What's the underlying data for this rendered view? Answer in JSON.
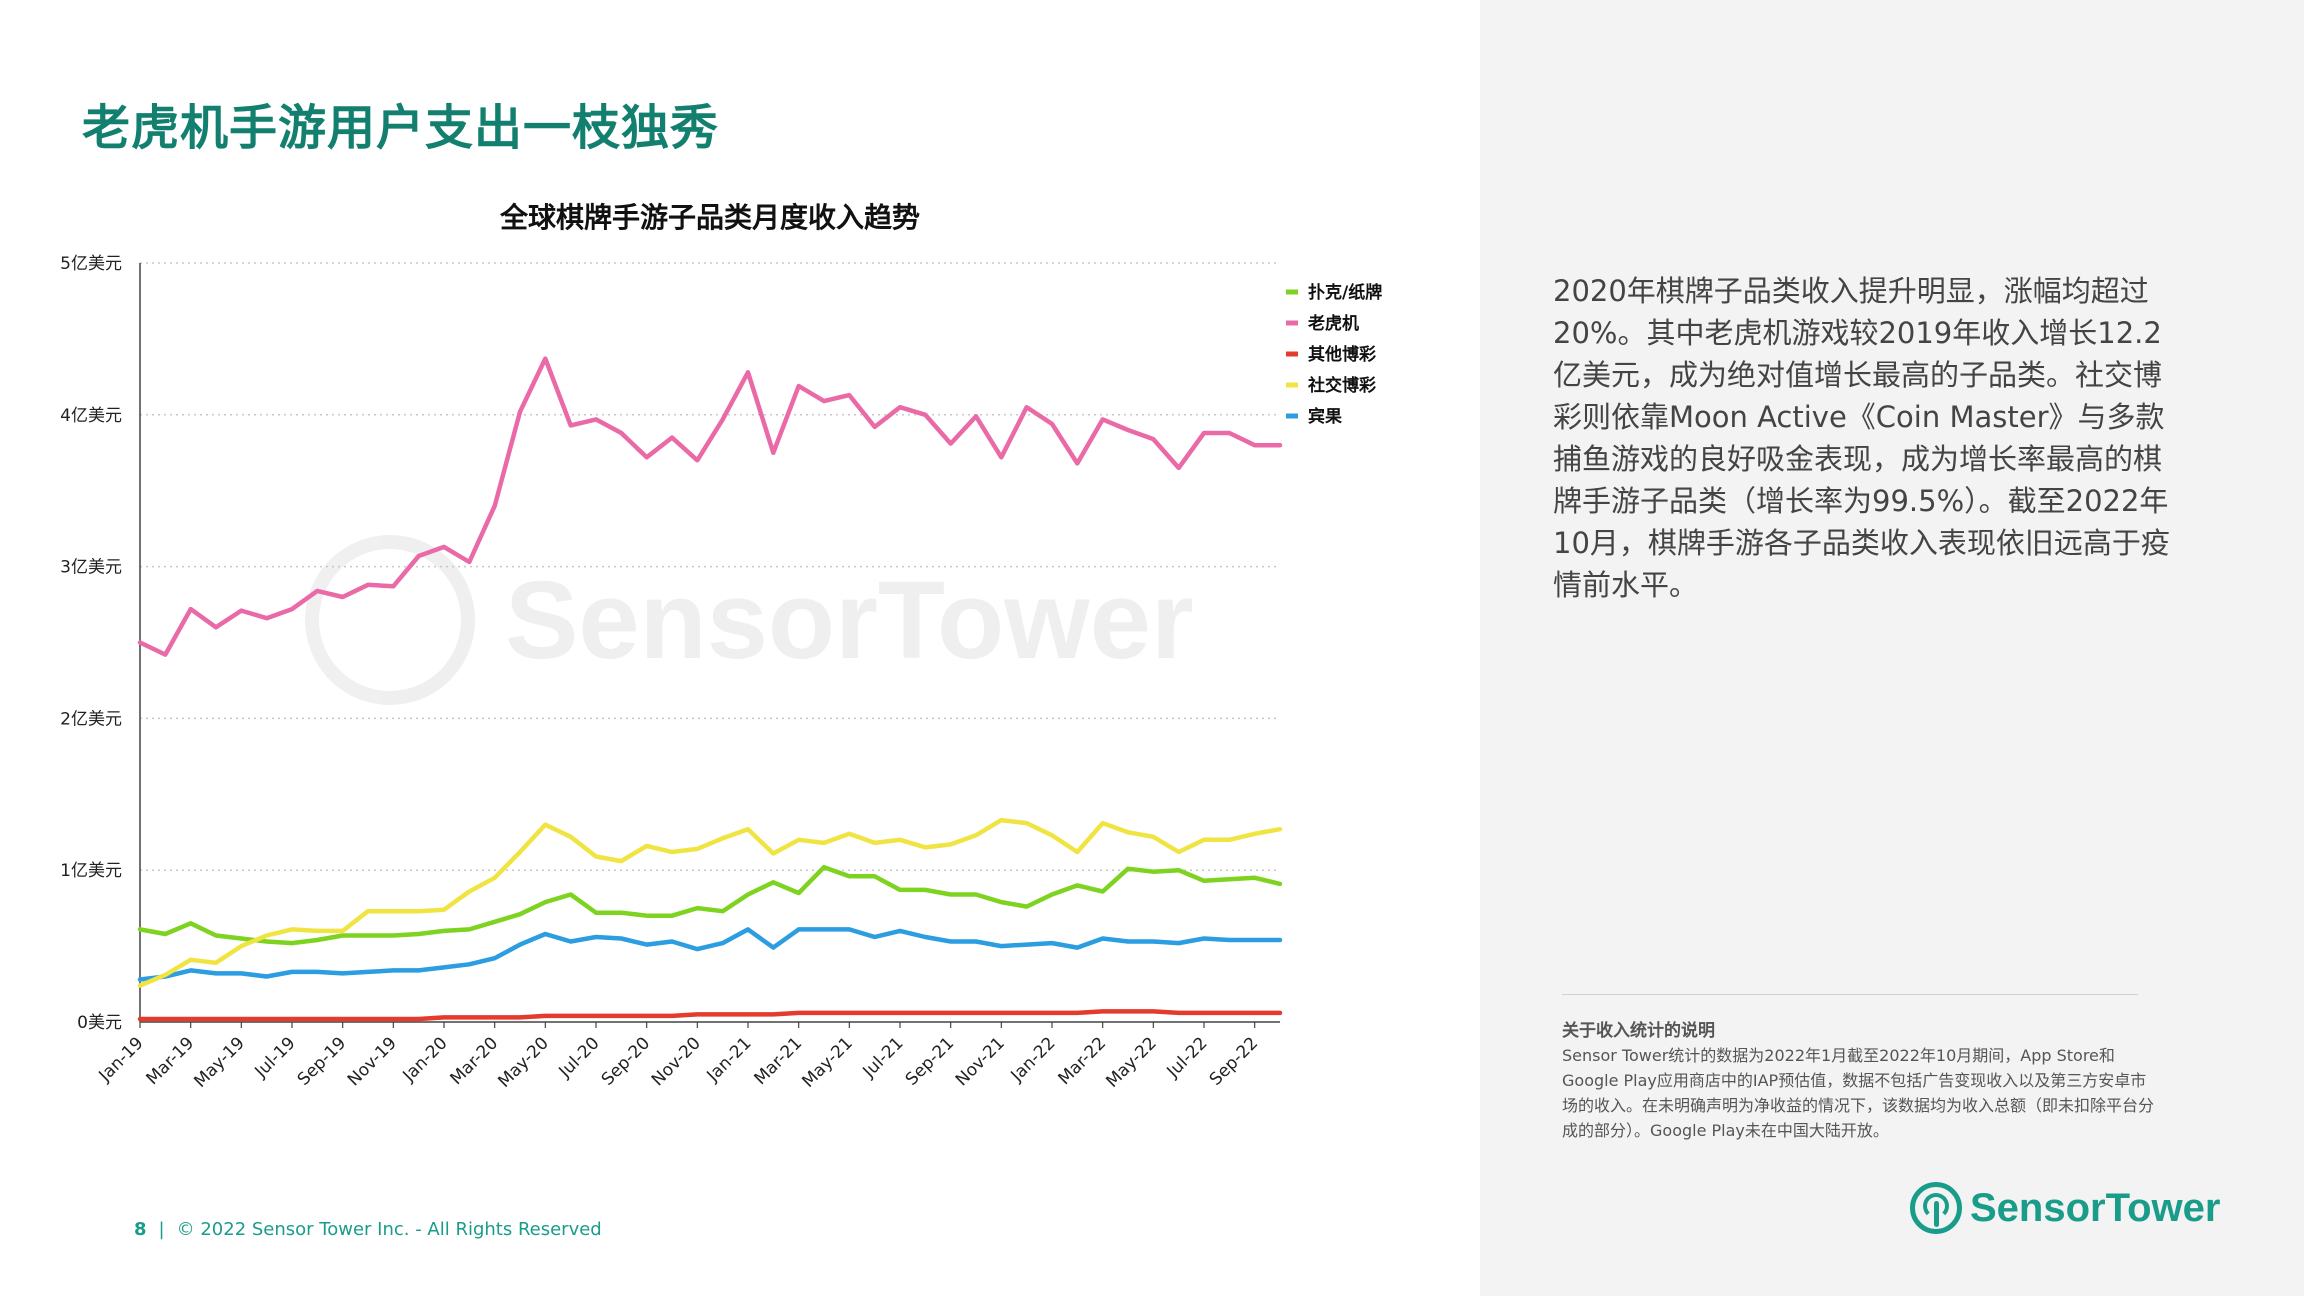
{
  "page": {
    "title": "老虎机手游用户支出一枝独秀",
    "footer_page": "8",
    "footer_sep": "|",
    "footer_copyright": "© 2022 Sensor Tower Inc. - All Rights Reserved"
  },
  "right": {
    "body": "2020年棋牌子品类收入提升明显，涨幅均超过20%。其中老虎机游戏较2019年收入增长12.2亿美元，成为绝对值增长最高的子品类。社交博彩则依靠Moon Active《Coin Master》与多款捕鱼游戏的良好吸金表现，成为增长率最高的棋牌手游子品类（增长率为99.5%）。截至2022年10月，棋牌手游各子品类收入表现依旧远高于疫情前水平。",
    "note_title": "关于收入统计的说明",
    "note_text": "Sensor Tower统计的数据为2022年1月截至2022年10月期间，App Store和Google Play应用商店中的IAP预估值，数据不包括广告变现收入以及第三方安卓市场的收入。在未明确声明为净收益的情况下，该数据均为收入总额（即未扣除平台分成的部分）。Google Play未在中国大陆开放。",
    "logo_text": "SensorTower",
    "watermark_text": "SensorTower"
  },
  "colors": {
    "title": "#13806f",
    "accent": "#1a9c8b"
  },
  "chart_data": {
    "type": "line",
    "title": "全球棋牌手游子品类月度收入趋势",
    "ylabel": "",
    "xlabel": "",
    "ylim": [
      0,
      5
    ],
    "yticks": [
      {
        "value": 0,
        "label": "0美元"
      },
      {
        "value": 1,
        "label": "1亿美元"
      },
      {
        "value": 2,
        "label": "2亿美元"
      },
      {
        "value": 3,
        "label": "3亿美元"
      },
      {
        "value": 4,
        "label": "4亿美元"
      },
      {
        "value": 5,
        "label": "5亿美元"
      }
    ],
    "grid": "horizontal dotted",
    "legend_position": "top-right",
    "x_tick_labels": [
      "Jan-19",
      "Mar-19",
      "May-19",
      "Jul-19",
      "Sep-19",
      "Nov-19",
      "Jan-20",
      "Mar-20",
      "May-20",
      "Jul-20",
      "Sep-20",
      "Nov-20",
      "Jan-21",
      "Mar-21",
      "May-21",
      "Jul-21",
      "Sep-21",
      "Nov-21",
      "Jan-22",
      "Mar-22",
      "May-22",
      "Jul-22",
      "Sep-22"
    ],
    "categories": [
      "Jan-19",
      "Feb-19",
      "Mar-19",
      "Apr-19",
      "May-19",
      "Jun-19",
      "Jul-19",
      "Aug-19",
      "Sep-19",
      "Oct-19",
      "Nov-19",
      "Dec-19",
      "Jan-20",
      "Feb-20",
      "Mar-20",
      "Apr-20",
      "May-20",
      "Jun-20",
      "Jul-20",
      "Aug-20",
      "Sep-20",
      "Oct-20",
      "Nov-20",
      "Dec-20",
      "Jan-21",
      "Feb-21",
      "Mar-21",
      "Apr-21",
      "May-21",
      "Jun-21",
      "Jul-21",
      "Aug-21",
      "Sep-21",
      "Oct-21",
      "Nov-21",
      "Dec-21",
      "Jan-22",
      "Feb-22",
      "Mar-22",
      "Apr-22",
      "May-22",
      "Jun-22",
      "Jul-22",
      "Aug-22",
      "Sep-22",
      "Oct-22"
    ],
    "series": [
      {
        "name": "扑克/纸牌",
        "color": "#7ed321",
        "values": [
          0.61,
          0.58,
          0.65,
          0.57,
          0.55,
          0.53,
          0.52,
          0.54,
          0.57,
          0.57,
          0.57,
          0.58,
          0.6,
          0.61,
          0.66,
          0.71,
          0.79,
          0.84,
          0.72,
          0.72,
          0.7,
          0.7,
          0.75,
          0.73,
          0.84,
          0.92,
          0.85,
          1.02,
          0.96,
          0.96,
          0.87,
          0.87,
          0.84,
          0.84,
          0.79,
          0.76,
          0.84,
          0.9,
          0.86,
          1.01,
          0.99,
          1.0,
          0.93,
          0.94,
          0.95,
          0.91
        ]
      },
      {
        "name": "老虎机",
        "color": "#ea6aa7",
        "values": [
          2.5,
          2.42,
          2.72,
          2.6,
          2.71,
          2.66,
          2.72,
          2.84,
          2.8,
          2.88,
          2.87,
          3.07,
          3.13,
          3.03,
          3.4,
          4.02,
          4.37,
          3.93,
          3.97,
          3.88,
          3.72,
          3.85,
          3.7,
          3.97,
          4.28,
          3.75,
          4.19,
          4.09,
          4.13,
          3.92,
          4.05,
          4.0,
          3.81,
          3.99,
          3.72,
          4.05,
          3.94,
          3.68,
          3.97,
          3.9,
          3.84,
          3.65,
          3.88,
          3.88,
          3.8,
          3.8
        ]
      },
      {
        "name": "其他博彩",
        "color": "#e53b2b",
        "values": [
          0.02,
          0.02,
          0.02,
          0.02,
          0.02,
          0.02,
          0.02,
          0.02,
          0.02,
          0.02,
          0.02,
          0.02,
          0.03,
          0.03,
          0.03,
          0.03,
          0.04,
          0.04,
          0.04,
          0.04,
          0.04,
          0.04,
          0.05,
          0.05,
          0.05,
          0.05,
          0.06,
          0.06,
          0.06,
          0.06,
          0.06,
          0.06,
          0.06,
          0.06,
          0.06,
          0.06,
          0.06,
          0.06,
          0.07,
          0.07,
          0.07,
          0.06,
          0.06,
          0.06,
          0.06,
          0.06
        ]
      },
      {
        "name": "社交博彩",
        "color": "#f0e442",
        "values": [
          0.24,
          0.31,
          0.41,
          0.39,
          0.5,
          0.57,
          0.61,
          0.6,
          0.6,
          0.73,
          0.73,
          0.73,
          0.74,
          0.86,
          0.95,
          1.12,
          1.3,
          1.22,
          1.09,
          1.06,
          1.16,
          1.12,
          1.14,
          1.21,
          1.27,
          1.11,
          1.2,
          1.18,
          1.24,
          1.18,
          1.2,
          1.15,
          1.17,
          1.23,
          1.33,
          1.31,
          1.23,
          1.12,
          1.31,
          1.25,
          1.22,
          1.12,
          1.2,
          1.2,
          1.24,
          1.27
        ]
      },
      {
        "name": "宾果",
        "color": "#2b9de0",
        "values": [
          0.28,
          0.3,
          0.34,
          0.32,
          0.32,
          0.3,
          0.33,
          0.33,
          0.32,
          0.33,
          0.34,
          0.34,
          0.36,
          0.38,
          0.42,
          0.51,
          0.58,
          0.53,
          0.56,
          0.55,
          0.51,
          0.53,
          0.48,
          0.52,
          0.61,
          0.49,
          0.61,
          0.61,
          0.61,
          0.56,
          0.6,
          0.56,
          0.53,
          0.53,
          0.5,
          0.51,
          0.52,
          0.49,
          0.55,
          0.53,
          0.53,
          0.52,
          0.55,
          0.54,
          0.54,
          0.54
        ]
      }
    ]
  }
}
